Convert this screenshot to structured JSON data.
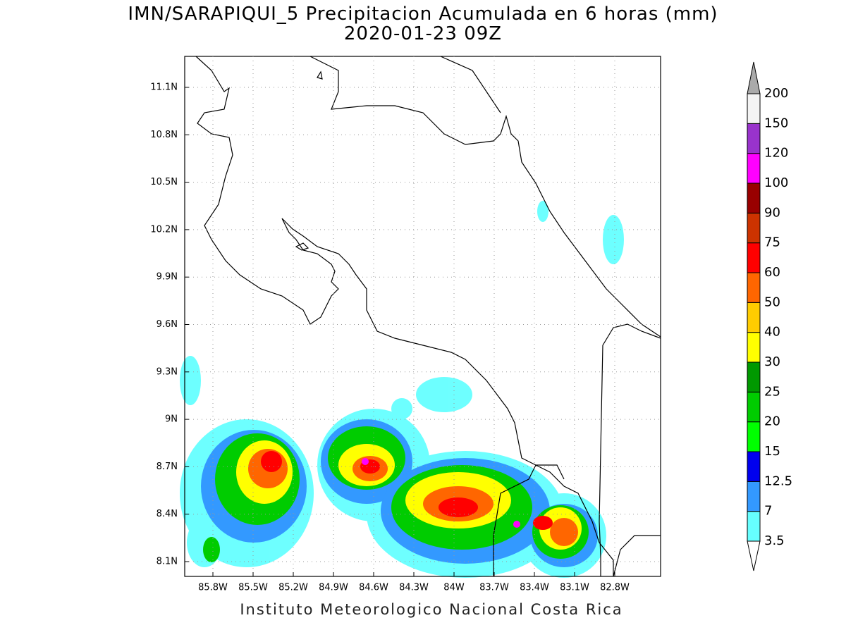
{
  "title": "IMN/SARAPIQUI_5 Precipitacion Acumulada en 6 horas (mm)",
  "subtitle": "2020-01-23 09Z",
  "map": {
    "lon_labels": [
      "85.8W",
      "85.5W",
      "85.2W",
      "84.9W",
      "84.6W",
      "84.3W",
      "84W",
      "83.7W",
      "83.4W",
      "83.1W",
      "82.8W"
    ],
    "lat_labels": [
      "8.1N",
      "8.4N",
      "8.7N",
      "9N",
      "9.3N",
      "9.6N",
      "9.9N",
      "10.2N",
      "10.5N",
      "10.8N",
      "11.1N"
    ]
  },
  "colorbar": {
    "labels": [
      "3.5",
      "7",
      "12.5",
      "15",
      "20",
      "25",
      "30",
      "40",
      "50",
      "60",
      "75",
      "90",
      "100",
      "120",
      "150",
      "200"
    ],
    "colors": [
      "#66ffff",
      "#3399ff",
      "#0000ee",
      "#00ff00",
      "#00cc00",
      "#009900",
      "#ffff00",
      "#ffcc00",
      "#ff6600",
      "#ff0000",
      "#cc3300",
      "#990000",
      "#ff00ff",
      "#9933cc",
      "#f4f4f4"
    ]
  },
  "footer": "Instituto Meteorologico Nacional Costa Rica"
}
